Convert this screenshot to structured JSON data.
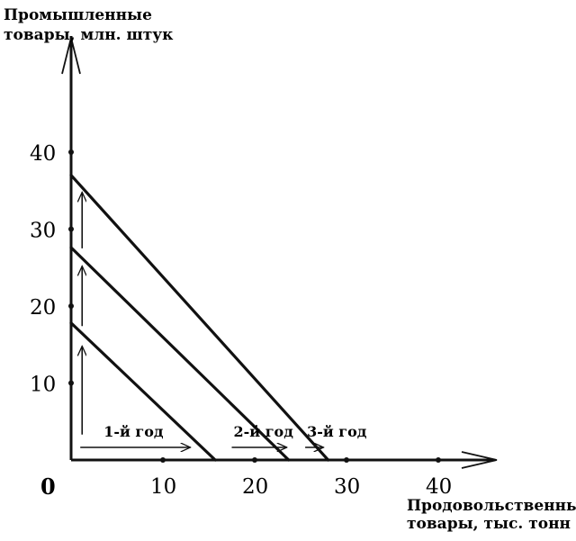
{
  "chart_data": {
    "type": "line",
    "title": "",
    "ylabel_lines": [
      "Промышленные",
      "товары, млн. штук"
    ],
    "xlabel_lines": [
      "Продовольственные",
      "товары, тыс. тонн"
    ],
    "origin_label": "0",
    "xlim": [
      0,
      40
    ],
    "ylim": [
      0,
      40
    ],
    "x_ticks": [
      10,
      20,
      30,
      40
    ],
    "y_ticks": [
      10,
      20,
      30,
      40
    ],
    "x_tick_labels": [
      "10",
      "20",
      "30",
      "40"
    ],
    "y_tick_labels": [
      "10",
      "20",
      "30",
      "40"
    ],
    "grid": false,
    "series": [
      {
        "x": [
          0,
          15.7
        ],
        "y": [
          17.8,
          0
        ]
      },
      {
        "x": [
          0,
          23.7
        ],
        "y": [
          27.6,
          0
        ]
      },
      {
        "x": [
          0,
          28
        ],
        "y": [
          37,
          0
        ]
      }
    ],
    "annotations": [
      {
        "text": "1-й год",
        "arrow_x": [
          1,
          13
        ],
        "arrow_y": -1.5
      },
      {
        "text": "2-й год",
        "arrow_x": [
          17.5,
          23.5
        ],
        "arrow_y": -1.7
      },
      {
        "text": "3-й год",
        "arrow_x": [
          25.5,
          27.5
        ],
        "arrow_y": -1.7
      }
    ],
    "vertical_arrows": [
      {
        "x": 1.2,
        "y_from": 3.3,
        "y_to": 14.8
      },
      {
        "x": 1.2,
        "y_from": 17.4,
        "y_to": 25.2
      },
      {
        "x": 1.2,
        "y_from": 27.5,
        "y_to": 34.8
      }
    ],
    "colors": {
      "ink": "#111111",
      "background": "#ffffff"
    }
  }
}
